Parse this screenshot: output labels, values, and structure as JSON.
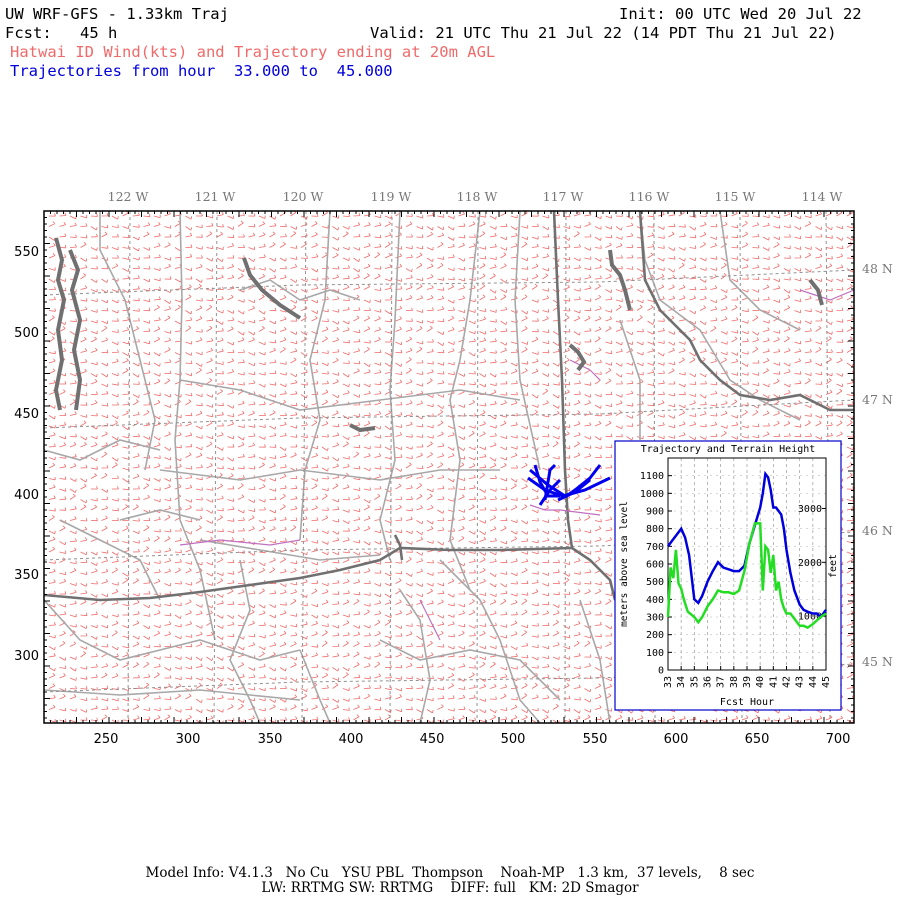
{
  "header": {
    "title": "UW WRF-GFS - 1.33km Traj",
    "init": "Init: 00 UTC Wed 20 Jul 22",
    "fcst_label": "Fcst:",
    "fcst_value": "45 h",
    "valid": "Valid: 21 UTC Thu 21 Jul 22 (14 PDT Thu 21 Jul 22)",
    "subtitle": "Hatwai ID Wind(kts) and Trajectory ending at 20m AGL",
    "traj_line": "Trajectories from hour  33.000 to  45.000"
  },
  "map": {
    "lon_labels": [
      "122 W",
      "121 W",
      "120 W",
      "119 W",
      "118 W",
      "117 W",
      "116 W",
      "115 W",
      "114 W"
    ],
    "lat_labels": [
      "48 N",
      "47 N",
      "46 N",
      "45 N"
    ],
    "x_ticks": [
      "250",
      "300",
      "350",
      "400",
      "450",
      "500",
      "550",
      "600",
      "650",
      "700"
    ],
    "y_ticks": [
      "550",
      "500",
      "450",
      "400",
      "350",
      "300"
    ],
    "colors": {
      "barbs": "#f06a6a",
      "counties": "#a8a8a8",
      "states": "#707070",
      "water": "#c070c0",
      "trajectory": "#0000ee"
    }
  },
  "inset": {
    "title": "Trajectory and Terrain Height",
    "xlabel": "Fcst Hour",
    "ylabel_left": "meters above sea level",
    "ylabel_right": "feet",
    "x_ticks": [
      "33",
      "34",
      "35",
      "36",
      "37",
      "38",
      "39",
      "40",
      "41",
      "42",
      "43",
      "44",
      "45"
    ],
    "y_ticks": [
      "0",
      "100",
      "200",
      "300",
      "400",
      "500",
      "600",
      "700",
      "800",
      "900",
      "1000",
      "1100"
    ],
    "ft_ticks": [
      "1000",
      "2000",
      "3000"
    ],
    "ft_tick_values": [
      1000,
      2000,
      3000
    ]
  },
  "chart_data": {
    "type": "line",
    "title": "Trajectory and Terrain Height",
    "xlabel": "Fcst Hour",
    "ylabel": "meters above sea level",
    "xlim": [
      33,
      45
    ],
    "ylim": [
      0,
      1200
    ],
    "series": [
      {
        "color": "#0000dd",
        "x": [
          33.0,
          33.3,
          33.6,
          34.0,
          34.3,
          34.6,
          35.0,
          35.3,
          35.6,
          36.0,
          36.4,
          36.8,
          37.2,
          37.6,
          38.0,
          38.4,
          38.8,
          39.2,
          39.6,
          40.0,
          40.2,
          40.4,
          40.6,
          40.8,
          41.0,
          41.2,
          41.4,
          41.6,
          41.8,
          42.0,
          42.3,
          42.6,
          43.0,
          43.3,
          43.6,
          44.0,
          44.3,
          44.6,
          45.0
        ],
        "y": [
          700,
          730,
          760,
          800,
          750,
          650,
          400,
          380,
          420,
          500,
          560,
          610,
          580,
          570,
          560,
          560,
          590,
          720,
          820,
          920,
          1000,
          1110,
          1090,
          1020,
          920,
          920,
          900,
          880,
          800,
          680,
          550,
          450,
          370,
          340,
          330,
          320,
          320,
          300,
          340
        ]
      },
      {
        "color": "#22dd22",
        "x": [
          33.0,
          33.2,
          33.4,
          33.6,
          33.8,
          34.0,
          34.2,
          34.5,
          35.0,
          35.3,
          35.6,
          36.0,
          36.4,
          36.8,
          37.2,
          37.6,
          38.0,
          38.4,
          38.8,
          39.2,
          39.6,
          40.0,
          40.2,
          40.4,
          40.6,
          40.8,
          41.0,
          41.2,
          41.4,
          41.6,
          41.8,
          42.0,
          42.3,
          42.6,
          43.0,
          43.3,
          43.6,
          44.0,
          44.3,
          44.6,
          45.0
        ],
        "y": [
          300,
          580,
          520,
          680,
          490,
          460,
          400,
          330,
          300,
          270,
          300,
          360,
          400,
          450,
          440,
          440,
          430,
          450,
          560,
          720,
          830,
          830,
          450,
          700,
          680,
          550,
          650,
          450,
          500,
          400,
          350,
          320,
          320,
          290,
          250,
          250,
          240,
          260,
          280,
          300,
          320
        ]
      }
    ]
  },
  "footer": {
    "line1": "Model Info: V4.1.3   No Cu   YSU PBL  Thompson    Noah-MP   1.3 km,  37 levels,    8 sec",
    "line2": "LW: RRTMG SW: RRTMG    DIFF: full   KM: 2D Smagor"
  }
}
